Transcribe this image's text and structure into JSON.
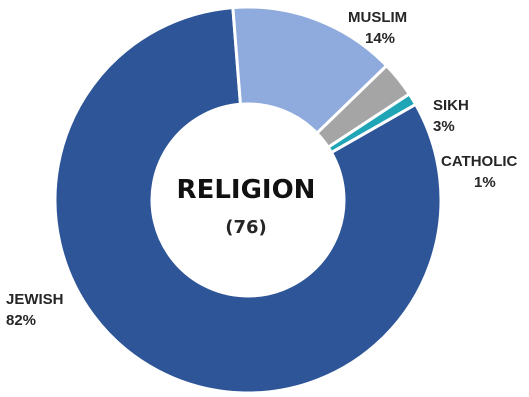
{
  "chart_data": {
    "type": "pie",
    "title": "RELIGION",
    "subtitle": "(76)",
    "categories": [
      "JEWISH",
      "MUSLIM",
      "SIKH",
      "CATHOLIC"
    ],
    "values": [
      82,
      14,
      3,
      1
    ],
    "value_labels": [
      "82%",
      "14%",
      "3%",
      "1%"
    ],
    "colors": [
      "#2E5597",
      "#8FAADC",
      "#A5A5A5",
      "#1FA5B5"
    ],
    "legend": "none",
    "grid": false
  }
}
